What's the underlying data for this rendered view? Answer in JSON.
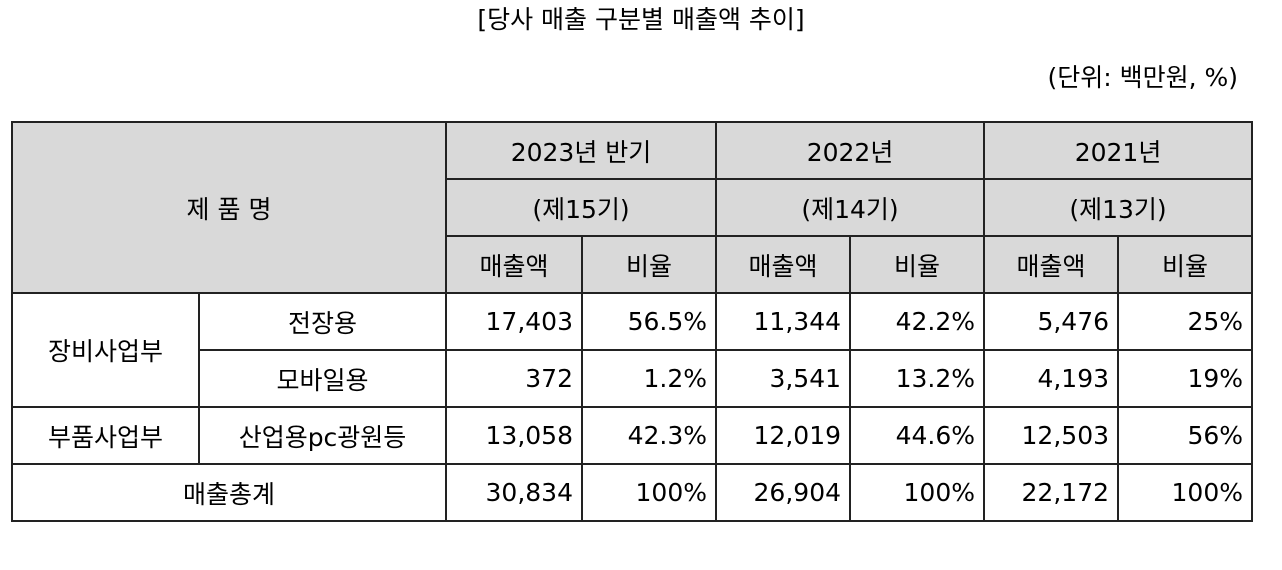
{
  "title": "[당사 매출 구분별 매출액 추이]",
  "unit": "(단위: 백만원, %)",
  "header": {
    "product": "제 품 명",
    "periods": [
      {
        "year": "2023년 반기",
        "term": "(제15기)"
      },
      {
        "year": "2022년",
        "term": "(제14기)"
      },
      {
        "year": "2021년",
        "term": "(제13기)"
      }
    ],
    "sales_label": "매출액",
    "ratio_label": "비율"
  },
  "rows": [
    {
      "division": "장비사업부",
      "product": "전장용",
      "values": [
        "17,403",
        "56.5%",
        "11,344",
        "42.2%",
        "5,476",
        "25%"
      ]
    },
    {
      "division": "장비사업부",
      "product": "모바일용",
      "values": [
        "372",
        "1.2%",
        "3,541",
        "13.2%",
        "4,193",
        "19%"
      ]
    },
    {
      "division": "부품사업부",
      "product": "산업용pc광원등",
      "values": [
        "13,058",
        "42.3%",
        "12,019",
        "44.6%",
        "12,503",
        "56%"
      ]
    }
  ],
  "total": {
    "label": "매출총계",
    "values": [
      "30,834",
      "100%",
      "26,904",
      "100%",
      "22,172",
      "100%"
    ]
  }
}
